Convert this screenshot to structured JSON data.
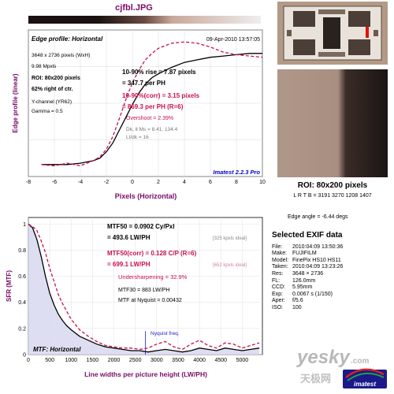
{
  "filename": "cjfbl.JPG",
  "edge": {
    "title": "Edge profile: Horizontal",
    "date": "09-Apr-2010 13:57:05",
    "dims": "3648 x 2736 pixels (WxH)",
    "mpix": "9.98 Mpxls",
    "roi": "ROI: 80x200 pixels",
    "roi_pos": "62% right of ctr.",
    "channel": "Y-channel (YR62)",
    "gamma": "Gamma = 0.5",
    "rise1": "10-90% rise = 7.87 pixels",
    "rise2": "= 347.7 per PH",
    "corr1": "10-90%(corr) = 3.15 pixels",
    "corr2": "= 869.3 per PH  (R=6)",
    "overshoot": "Overshoot = 2.39%",
    "dk_lt": "Dk, lt Ms = 8.41, 134.4",
    "ltdk": "Lt/dk = 16",
    "brand": "Imatest 2.2.3 Pro",
    "xlabel": "Pixels (Horizontal)",
    "ylabel": "Edge profile (linear)",
    "xticks": [
      "-8",
      "-6",
      "-4",
      "-2",
      "0",
      "2",
      "4",
      "6",
      "8",
      "10"
    ]
  },
  "mtf": {
    "mtf50": "MTF50 = 0.0902 Cy/Pxl",
    "mtf50_lw": "= 493.6 LW/PH",
    "mtf50_ideal": "[325 kpxls ideal]",
    "corr1": "MTF50(corr) = 0.128 C/P  (R=6)",
    "corr2": "= 699.1 LW/PH",
    "corr_ideal": "[652 kpxls ideal]",
    "under": "Undersharpening = 32.9%",
    "mtf30": "MTF30 = 883 LW/PH",
    "nyq": "MTF at Nyquist = 0.00432",
    "nyq_label": "Nyquist freq.",
    "title": "MTF: Horizontal",
    "xlabel": "Line widths per picture height (LW/PH)",
    "ylabel": "SFR (MTF)",
    "xticks": [
      "0",
      "500",
      "1000",
      "1500",
      "2000",
      "2500",
      "3000",
      "3500",
      "4000",
      "4500",
      "5000"
    ],
    "yticks": [
      "0",
      "0.2",
      "0.4",
      "0.6",
      "0.8",
      "1"
    ]
  },
  "roi_label": "ROI: 80x200 pixels",
  "lrtb": "L R T B = 3191 3270  1208 1407",
  "edge_angle": "Edge angle = -6.44 degs",
  "exif": {
    "title": "Selected EXIF data",
    "rows": [
      {
        "k": "File:",
        "v": "2010:04:09 13:50:36"
      },
      {
        "k": "Make:",
        "v": "FUJIFILM"
      },
      {
        "k": "Model:",
        "v": "FinePix HS10 HS11"
      },
      {
        "k": "Taken:",
        "v": "2010:04:09 13:23:26"
      },
      {
        "k": "Res:",
        "v": "3648 × 2736"
      },
      {
        "k": "FL:",
        "v": "126.0mm"
      },
      {
        "k": "CCD:",
        "v": "5.95mm"
      },
      {
        "k": "Exp:",
        "v": "0.0067 s  (1/150)"
      },
      {
        "k": "Aper:",
        "v": "f/5.6"
      },
      {
        "k": "ISO:",
        "v": "100"
      }
    ]
  },
  "watermark": {
    "cn": "天极网",
    "en": "yesky",
    "dot": ".com",
    "logo": "imatest"
  },
  "chart_data": [
    {
      "type": "line",
      "title": "Edge profile: Horizontal",
      "xlabel": "Pixels (Horizontal)",
      "ylabel": "Edge profile (linear)",
      "xlim": [
        -8,
        10
      ],
      "ylim": [
        0,
        1
      ],
      "series": [
        {
          "x": [
            -7,
            -6,
            -5,
            -4,
            -3,
            -2.5,
            -2,
            -1.5,
            -1,
            -0.5,
            0,
            0.5,
            1,
            1.5,
            2,
            3,
            4,
            5,
            6,
            7,
            8,
            9,
            10
          ],
          "values": [
            0.02,
            0.02,
            0.02,
            0.03,
            0.05,
            0.07,
            0.12,
            0.19,
            0.29,
            0.39,
            0.49,
            0.58,
            0.65,
            0.7,
            0.73,
            0.78,
            0.82,
            0.84,
            0.86,
            0.87,
            0.88,
            0.89,
            0.89
          ]
        },
        {
          "x": [
            -7,
            -6,
            -5,
            -4,
            -3,
            -2.5,
            -2,
            -1.5,
            -1,
            -0.5,
            0,
            0.5,
            1,
            1.5,
            2,
            3,
            4,
            5,
            6,
            7,
            8,
            9,
            10
          ],
          "values": [
            0.02,
            0.01,
            0.03,
            0.01,
            0.05,
            0.08,
            0.14,
            0.24,
            0.38,
            0.53,
            0.66,
            0.76,
            0.84,
            0.89,
            0.93,
            0.97,
            0.98,
            0.97,
            0.94,
            0.9,
            0.88,
            0.87,
            0.86
          ]
        }
      ]
    },
    {
      "type": "line",
      "title": "MTF: Horizontal",
      "xlabel": "Line widths per picture height (LW/PH)",
      "ylabel": "SFR (MTF)",
      "xlim": [
        0,
        5472
      ],
      "ylim": [
        0,
        1.05
      ],
      "series": [
        {
          "x": [
            0,
            100,
            200,
            300,
            400,
            500,
            600,
            700,
            800,
            900,
            1000,
            1200,
            1400,
            1600,
            1800,
            2000,
            2200,
            2400,
            2600,
            2800,
            3000,
            3200,
            3400,
            3600,
            3800,
            4000,
            4200,
            4400,
            4600,
            4800,
            5000,
            5200,
            5400
          ],
          "values": [
            1.0,
            0.97,
            0.88,
            0.75,
            0.6,
            0.47,
            0.38,
            0.31,
            0.26,
            0.22,
            0.19,
            0.14,
            0.11,
            0.08,
            0.06,
            0.05,
            0.04,
            0.03,
            0.03,
            0.02,
            0.03,
            0.04,
            0.03,
            0.02,
            0.03,
            0.05,
            0.04,
            0.03,
            0.05,
            0.04,
            0.03,
            0.04,
            0.05
          ]
        },
        {
          "x": [
            0,
            100,
            200,
            300,
            400,
            500,
            600,
            700,
            800,
            900,
            1000,
            1200,
            1400,
            1600,
            1800,
            2000,
            2200,
            2400,
            2600,
            2800,
            3000,
            3200,
            3400,
            3600,
            3800,
            4000,
            4200,
            4400,
            4600,
            4800,
            5000,
            5200,
            5400
          ],
          "values": [
            1.0,
            0.98,
            0.95,
            0.87,
            0.78,
            0.66,
            0.56,
            0.46,
            0.39,
            0.33,
            0.27,
            0.19,
            0.14,
            0.1,
            0.07,
            0.06,
            0.05,
            0.05,
            0.04,
            0.05,
            0.08,
            0.1,
            0.06,
            0.04,
            0.08,
            0.11,
            0.07,
            0.05,
            0.09,
            0.08,
            0.05,
            0.07,
            0.09
          ]
        }
      ],
      "nyquist_x": 2736
    }
  ]
}
